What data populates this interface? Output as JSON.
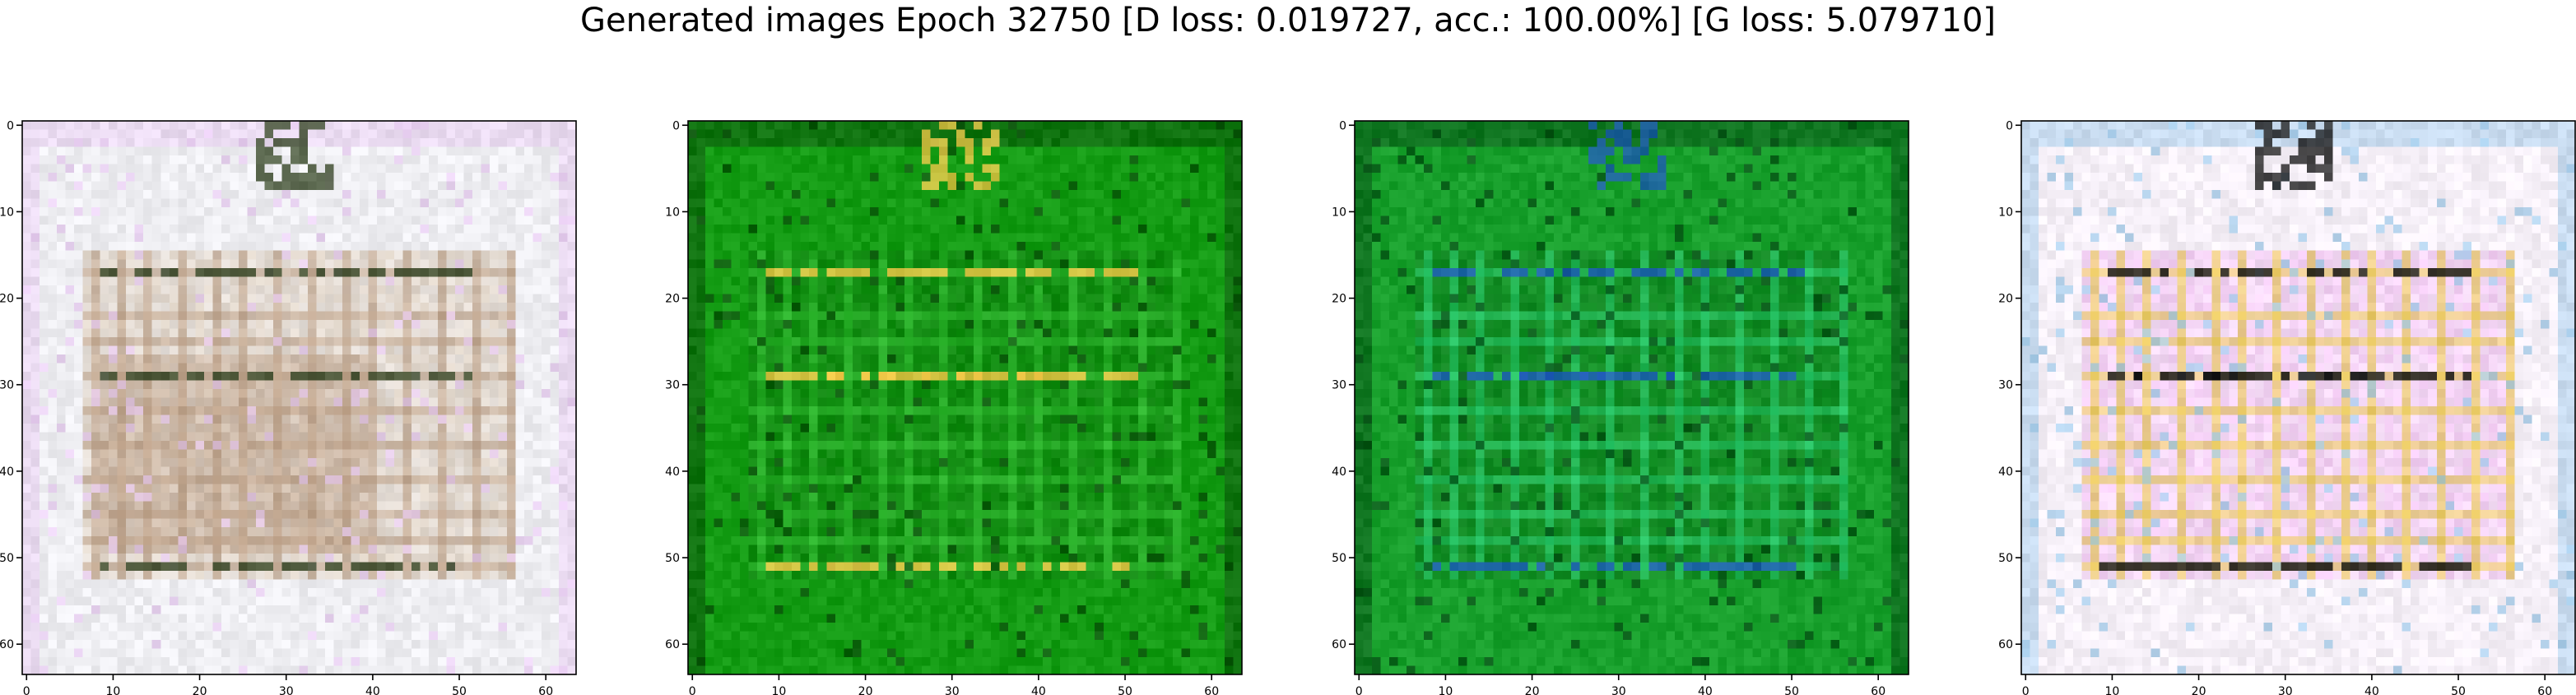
{
  "figure": {
    "title": "Generated images Epoch 32750 [D loss: 0.019727, acc.: 100.00%] [G loss: 5.079710]"
  },
  "chart_data": [
    {
      "type": "heatmap",
      "panel": 1,
      "image_resolution": [
        64,
        64
      ],
      "x_ticks": [
        "0",
        "10",
        "20",
        "30",
        "40",
        "50",
        "60"
      ],
      "y_ticks": [
        "0",
        "10",
        "20",
        "30",
        "40",
        "50",
        "60"
      ],
      "xlim": [
        -0.5,
        63.5
      ],
      "ylim": [
        63.5,
        -0.5
      ],
      "grid": false,
      "dominant_colors": [
        "#eeeef2",
        "#d8c7b2",
        "#b89a80",
        "#e6c8f0",
        "#3a4a2a"
      ]
    },
    {
      "type": "heatmap",
      "panel": 2,
      "image_resolution": [
        64,
        64
      ],
      "x_ticks": [
        "0",
        "10",
        "20",
        "30",
        "40",
        "50",
        "60"
      ],
      "y_ticks": [
        "0",
        "10",
        "20",
        "30",
        "40",
        "50",
        "60"
      ],
      "xlim": [
        -0.5,
        63.5
      ],
      "ylim": [
        63.5,
        -0.5
      ],
      "grid": false,
      "dominant_colors": [
        "#149c14",
        "#0f7d0f",
        "#36c236",
        "#0a4a0a",
        "#f0c848"
      ]
    },
    {
      "type": "heatmap",
      "panel": 3,
      "image_resolution": [
        64,
        64
      ],
      "x_ticks": [
        "0",
        "10",
        "20",
        "30",
        "40",
        "50",
        "60"
      ],
      "y_ticks": [
        "0",
        "10",
        "20",
        "30",
        "40",
        "50",
        "60"
      ],
      "xlim": [
        -0.5,
        63.5
      ],
      "ylim": [
        63.5,
        -0.5
      ],
      "grid": false,
      "dominant_colors": [
        "#18a02c",
        "#0e7a1e",
        "#2ed478",
        "#064a14",
        "#1e5ab4"
      ]
    },
    {
      "type": "heatmap",
      "panel": 4,
      "image_resolution": [
        64,
        64
      ],
      "x_ticks": [
        "0",
        "10",
        "20",
        "30",
        "40",
        "50",
        "60"
      ],
      "y_ticks": [
        "0",
        "10",
        "20",
        "30",
        "40",
        "50",
        "60"
      ],
      "xlim": [
        -0.5,
        63.5
      ],
      "ylim": [
        63.5,
        -0.5
      ],
      "grid": false,
      "dominant_colors": [
        "#f6f0f8",
        "#f0b8f0",
        "#e8c83c",
        "#9cc8e8",
        "#1a1a1a"
      ]
    }
  ]
}
